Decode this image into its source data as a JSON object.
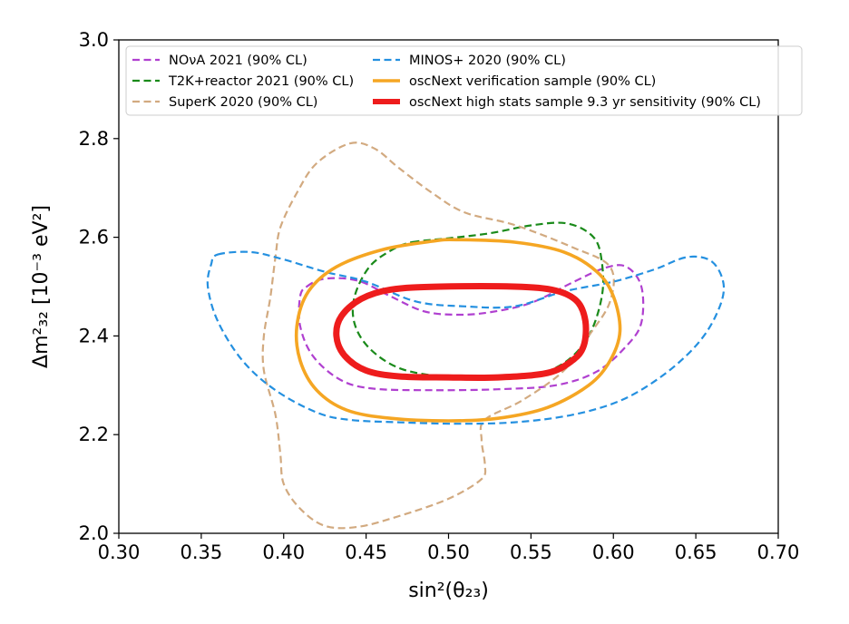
{
  "chart_data": {
    "type": "contour",
    "title": "",
    "xlabel": "sin²(θ₂₃)",
    "ylabel": "Δm²₃₂ [10⁻³ eV²]",
    "xlim": [
      0.3,
      0.7
    ],
    "ylim": [
      2.0,
      3.0
    ],
    "x_ticks": [
      "0.30",
      "0.35",
      "0.40",
      "0.45",
      "0.50",
      "0.55",
      "0.60",
      "0.65",
      "0.70"
    ],
    "y_ticks": [
      "2.0",
      "2.2",
      "2.4",
      "2.6",
      "2.8",
      "3.0"
    ],
    "grid": false,
    "legend_position": "top",
    "series": [
      {
        "id": "nova",
        "name": "NOνA 2021 (90% CL)",
        "color": "#b040d0",
        "style": "dashed",
        "points": [
          [
            0.414,
            2.5
          ],
          [
            0.425,
            2.516
          ],
          [
            0.445,
            2.512
          ],
          [
            0.465,
            2.48
          ],
          [
            0.485,
            2.45
          ],
          [
            0.505,
            2.443
          ],
          [
            0.525,
            2.448
          ],
          [
            0.55,
            2.467
          ],
          [
            0.575,
            2.508
          ],
          [
            0.595,
            2.538
          ],
          [
            0.608,
            2.54
          ],
          [
            0.617,
            2.5
          ],
          [
            0.617,
            2.427
          ],
          [
            0.608,
            2.38
          ],
          [
            0.59,
            2.328
          ],
          [
            0.565,
            2.3
          ],
          [
            0.53,
            2.292
          ],
          [
            0.49,
            2.29
          ],
          [
            0.455,
            2.293
          ],
          [
            0.435,
            2.31
          ],
          [
            0.418,
            2.358
          ],
          [
            0.41,
            2.42
          ],
          [
            0.41,
            2.48
          ],
          [
            0.414,
            2.5
          ]
        ]
      },
      {
        "id": "t2k",
        "name": "T2K+reactor 2021 (90% CL)",
        "color": "#1a8a1a",
        "style": "dashed",
        "points": [
          [
            0.478,
            2.59
          ],
          [
            0.5,
            2.598
          ],
          [
            0.525,
            2.608
          ],
          [
            0.55,
            2.624
          ],
          [
            0.572,
            2.628
          ],
          [
            0.588,
            2.6
          ],
          [
            0.593,
            2.55
          ],
          [
            0.593,
            2.48
          ],
          [
            0.585,
            2.4
          ],
          [
            0.57,
            2.345
          ],
          [
            0.548,
            2.318
          ],
          [
            0.52,
            2.315
          ],
          [
            0.495,
            2.318
          ],
          [
            0.47,
            2.335
          ],
          [
            0.452,
            2.375
          ],
          [
            0.443,
            2.425
          ],
          [
            0.443,
            2.48
          ],
          [
            0.452,
            2.54
          ],
          [
            0.466,
            2.575
          ],
          [
            0.478,
            2.59
          ]
        ]
      },
      {
        "id": "superk",
        "name": "SuperK 2020 (90% CL)",
        "color": "#d2aa80",
        "style": "dashed",
        "points": [
          [
            0.44,
            2.79
          ],
          [
            0.455,
            2.78
          ],
          [
            0.47,
            2.74
          ],
          [
            0.49,
            2.69
          ],
          [
            0.51,
            2.65
          ],
          [
            0.54,
            2.625
          ],
          [
            0.575,
            2.58
          ],
          [
            0.598,
            2.54
          ],
          [
            0.598,
            2.47
          ],
          [
            0.585,
            2.4
          ],
          [
            0.57,
            2.33
          ],
          [
            0.545,
            2.27
          ],
          [
            0.522,
            2.23
          ],
          [
            0.52,
            2.19
          ],
          [
            0.522,
            2.14
          ],
          [
            0.52,
            2.11
          ],
          [
            0.5,
            2.07
          ],
          [
            0.47,
            2.035
          ],
          [
            0.445,
            2.013
          ],
          [
            0.425,
            2.015
          ],
          [
            0.41,
            2.05
          ],
          [
            0.4,
            2.1
          ],
          [
            0.398,
            2.16
          ],
          [
            0.395,
            2.24
          ],
          [
            0.388,
            2.33
          ],
          [
            0.388,
            2.4
          ],
          [
            0.392,
            2.48
          ],
          [
            0.395,
            2.56
          ],
          [
            0.398,
            2.62
          ],
          [
            0.408,
            2.69
          ],
          [
            0.42,
            2.75
          ],
          [
            0.44,
            2.79
          ]
        ]
      },
      {
        "id": "minos",
        "name": "MINOS+ 2020 (90% CL)",
        "color": "#2490e0",
        "style": "dashed",
        "points": [
          [
            0.36,
            2.565
          ],
          [
            0.38,
            2.57
          ],
          [
            0.4,
            2.555
          ],
          [
            0.425,
            2.53
          ],
          [
            0.45,
            2.51
          ],
          [
            0.48,
            2.47
          ],
          [
            0.51,
            2.46
          ],
          [
            0.54,
            2.46
          ],
          [
            0.57,
            2.49
          ],
          [
            0.6,
            2.51
          ],
          [
            0.625,
            2.535
          ],
          [
            0.645,
            2.56
          ],
          [
            0.66,
            2.55
          ],
          [
            0.667,
            2.5
          ],
          [
            0.662,
            2.44
          ],
          [
            0.65,
            2.38
          ],
          [
            0.63,
            2.32
          ],
          [
            0.605,
            2.27
          ],
          [
            0.575,
            2.24
          ],
          [
            0.54,
            2.225
          ],
          [
            0.505,
            2.222
          ],
          [
            0.47,
            2.225
          ],
          [
            0.44,
            2.23
          ],
          [
            0.42,
            2.245
          ],
          [
            0.395,
            2.29
          ],
          [
            0.375,
            2.35
          ],
          [
            0.36,
            2.43
          ],
          [
            0.354,
            2.5
          ],
          [
            0.356,
            2.545
          ],
          [
            0.36,
            2.565
          ]
        ]
      },
      {
        "id": "oscnext_verif",
        "name": "oscNext verification sample (90% CL)",
        "color": "#f5a623",
        "style": "solid",
        "points": [
          [
            0.505,
            2.595
          ],
          [
            0.54,
            2.59
          ],
          [
            0.57,
            2.57
          ],
          [
            0.59,
            2.53
          ],
          [
            0.6,
            2.48
          ],
          [
            0.604,
            2.41
          ],
          [
            0.598,
            2.35
          ],
          [
            0.585,
            2.3
          ],
          [
            0.56,
            2.255
          ],
          [
            0.53,
            2.233
          ],
          [
            0.5,
            2.228
          ],
          [
            0.465,
            2.233
          ],
          [
            0.438,
            2.25
          ],
          [
            0.42,
            2.29
          ],
          [
            0.41,
            2.35
          ],
          [
            0.408,
            2.42
          ],
          [
            0.415,
            2.49
          ],
          [
            0.432,
            2.54
          ],
          [
            0.46,
            2.575
          ],
          [
            0.49,
            2.592
          ],
          [
            0.505,
            2.595
          ]
        ]
      },
      {
        "id": "oscnext_highstats",
        "name": "oscNext high stats sample 9.3 yr sensitivity (90% CL)",
        "color": "#ee1c1c",
        "style": "solid",
        "points": [
          [
            0.495,
            2.5
          ],
          [
            0.54,
            2.5
          ],
          [
            0.565,
            2.492
          ],
          [
            0.578,
            2.47
          ],
          [
            0.583,
            2.43
          ],
          [
            0.582,
            2.38
          ],
          [
            0.575,
            2.35
          ],
          [
            0.56,
            2.325
          ],
          [
            0.53,
            2.316
          ],
          [
            0.5,
            2.316
          ],
          [
            0.47,
            2.318
          ],
          [
            0.45,
            2.33
          ],
          [
            0.437,
            2.36
          ],
          [
            0.432,
            2.4
          ],
          [
            0.435,
            2.44
          ],
          [
            0.447,
            2.475
          ],
          [
            0.465,
            2.494
          ],
          [
            0.495,
            2.5
          ]
        ]
      }
    ]
  }
}
